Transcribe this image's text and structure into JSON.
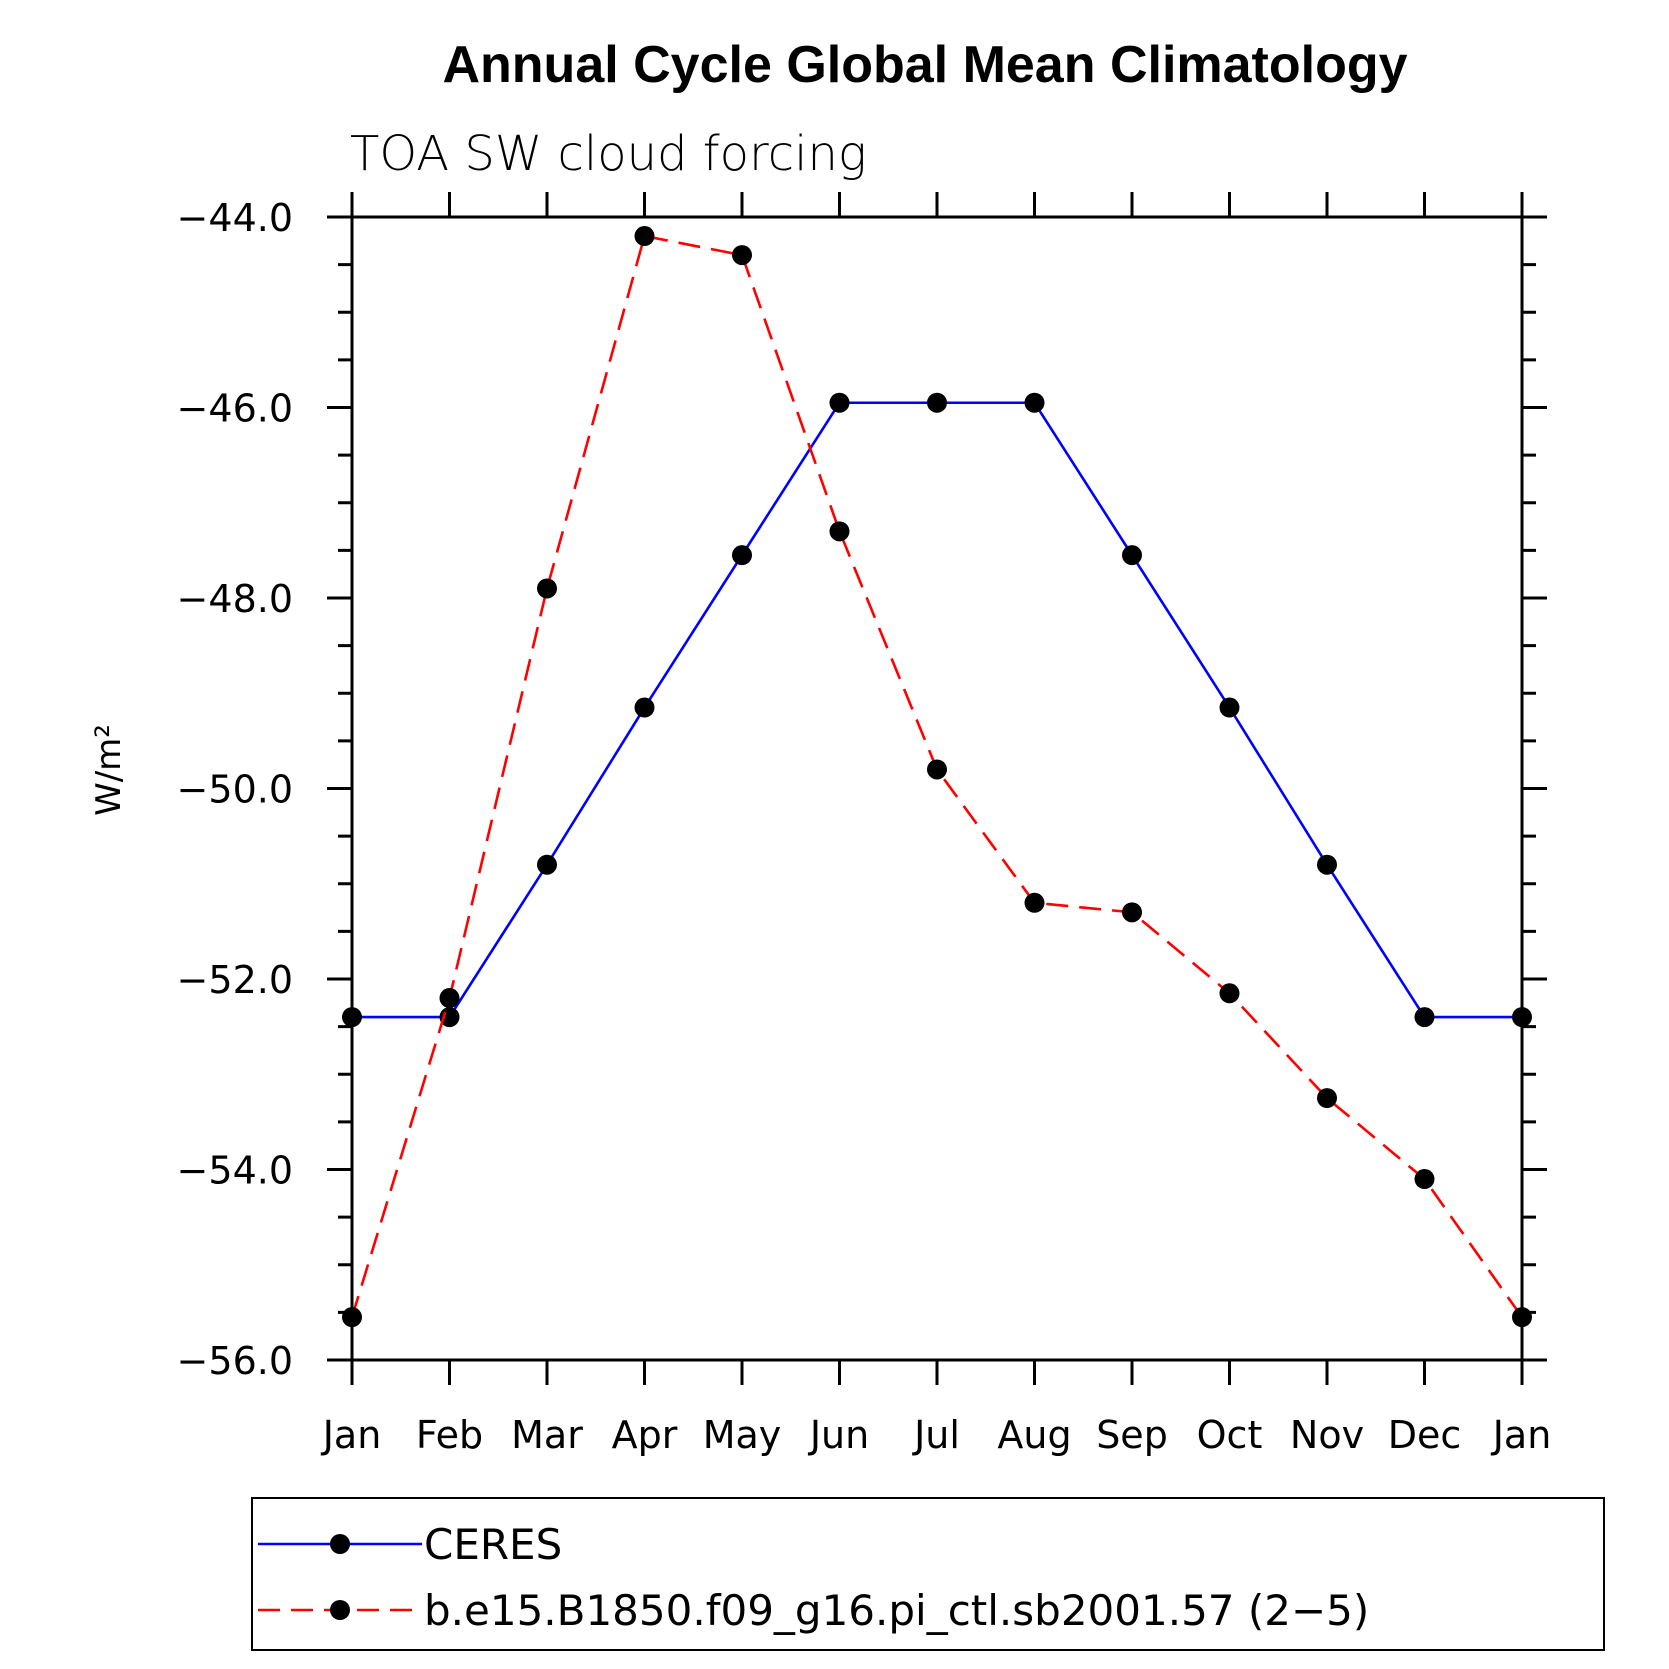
{
  "chart_data": {
    "type": "line",
    "title": "Annual Cycle Global Mean Climatology",
    "subtitle": "TOA SW cloud forcing",
    "ylabel": "W/m²",
    "xlabel": "",
    "categories": [
      "Jan",
      "Feb",
      "Mar",
      "Apr",
      "May",
      "Jun",
      "Jul",
      "Aug",
      "Sep",
      "Oct",
      "Nov",
      "Dec",
      "Jan"
    ],
    "ylim": [
      -56.0,
      -44.0
    ],
    "yticks": [
      "-44.0",
      "-46.0",
      "-48.0",
      "-50.0",
      "-52.0",
      "-54.0",
      "-56.0"
    ],
    "ytick_values": [
      -44,
      -46,
      -48,
      -50,
      -52,
      -54,
      -56
    ],
    "grid": false,
    "legend_position": "bottom",
    "series": [
      {
        "name": "CERES",
        "color": "#0000ff",
        "dash": "solid",
        "values": [
          -52.4,
          -52.4,
          -50.8,
          -49.15,
          -47.55,
          -45.95,
          -45.95,
          -45.95,
          -47.55,
          -49.15,
          -50.8,
          -52.4,
          -52.4
        ]
      },
      {
        "name": "b.e15.B1850.f09_g16.pi_ctl.sb2001.57 (2-5)",
        "color": "#ff0000",
        "dash": "dashed",
        "values": [
          -55.55,
          -52.2,
          -47.9,
          -44.2,
          -44.4,
          -47.3,
          -49.8,
          -51.2,
          -51.3,
          -52.15,
          -53.25,
          -54.1,
          -55.55
        ]
      }
    ]
  }
}
